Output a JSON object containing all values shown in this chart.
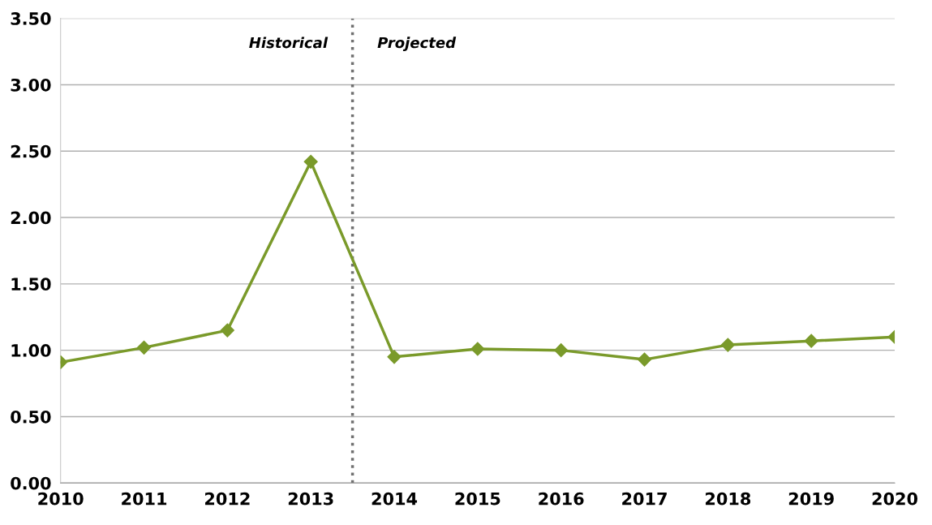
{
  "chart_data": {
    "type": "line",
    "x": [
      2010,
      2011,
      2012,
      2013,
      2014,
      2015,
      2016,
      2017,
      2018,
      2019,
      2020
    ],
    "series": [
      {
        "color": "#7a9a2a",
        "values": [
          0.91,
          1.02,
          1.15,
          2.42,
          0.95,
          1.01,
          1.0,
          0.93,
          1.04,
          1.07,
          1.1
        ]
      }
    ],
    "xlim": [
      2010,
      2020
    ],
    "xticks": [
      2010,
      2011,
      2012,
      2013,
      2014,
      2015,
      2016,
      2017,
      2018,
      2019,
      2020
    ],
    "ylim": [
      0,
      3.5
    ],
    "yticks": [
      {
        "value": 0,
        "label": "0.00"
      },
      {
        "value": 0.5,
        "label": "0.50"
      },
      {
        "value": 1,
        "label": "1.00"
      },
      {
        "value": 1.5,
        "label": "1.50"
      },
      {
        "value": 2,
        "label": "2.00"
      },
      {
        "value": 2.5,
        "label": "2.50"
      },
      {
        "value": 3,
        "label": "3.00"
      },
      {
        "value": 3.5,
        "label": "3.50"
      }
    ],
    "grid": "y",
    "marker": "diamond",
    "line_style": "solid",
    "ref_lines": [
      {
        "axis": "x",
        "value": 2013.5,
        "color": "#707070",
        "line_style": "dotted"
      }
    ],
    "annotations": [
      "Historical",
      "Projected"
    ]
  }
}
